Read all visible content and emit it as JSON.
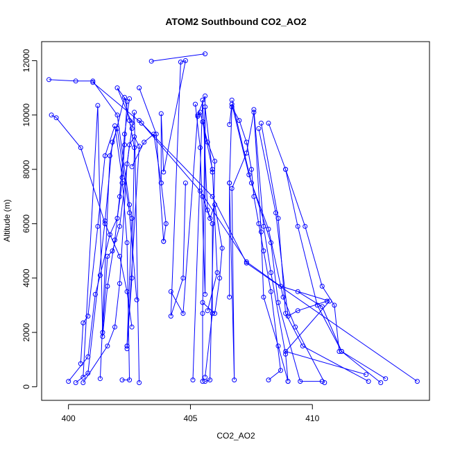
{
  "chart_data": {
    "type": "line",
    "title": "ATOM2 Southbound CO2_AO2",
    "xlabel": "CO2_AO2",
    "ylabel": "Altitude (m)",
    "xlim": [
      398.9,
      414.8
    ],
    "ylim": [
      -500,
      12700
    ],
    "xticks": [
      400,
      405,
      410
    ],
    "xtick_labels": [
      "400",
      "405",
      "410"
    ],
    "yticks": [
      0,
      2000,
      4000,
      6000,
      8000,
      10000,
      12000
    ],
    "ytick_labels": [
      "0",
      "2000",
      "4000",
      "6000",
      "8000",
      "10000",
      "12000"
    ],
    "colors": {
      "series": "#0000ff",
      "axis": "#000000",
      "background": "#ffffff"
    },
    "markers": "open-circle",
    "series": [
      {
        "points": [
          [
            400.0,
            200
          ],
          [
            400.8,
            1100
          ],
          [
            401.1,
            3400
          ],
          [
            401.3,
            4100
          ],
          [
            401.7,
            5600
          ],
          [
            402.0,
            6200
          ],
          [
            402.2,
            7500
          ],
          [
            402.3,
            8900
          ],
          [
            402.4,
            10500
          ],
          [
            402.0,
            11000
          ],
          [
            402.6,
            9700
          ]
        ]
      },
      {
        "points": [
          [
            400.3,
            150
          ],
          [
            400.8,
            500
          ],
          [
            401.5,
            6100
          ],
          [
            401.8,
            9000
          ],
          [
            402.0,
            9500
          ],
          [
            402.5,
            6400
          ],
          [
            402.8,
            3200
          ]
        ]
      },
      {
        "points": [
          [
            400.6,
            150
          ],
          [
            401.6,
            1500
          ],
          [
            401.9,
            2200
          ],
          [
            402.1,
            3800
          ],
          [
            402.4,
            8200
          ],
          [
            402.6,
            9500
          ],
          [
            402.7,
            10100
          ],
          [
            402.9,
            150
          ]
        ]
      },
      {
        "points": [
          [
            400.6,
            350
          ],
          [
            401.2,
            10350
          ],
          [
            401.4,
            2000
          ],
          [
            401.6,
            4800
          ],
          [
            401.8,
            5000
          ],
          [
            402.1,
            5900
          ],
          [
            402.5,
            8900
          ],
          [
            402.7,
            9200
          ],
          [
            402.9,
            8850
          ],
          [
            402.4,
            1400
          ]
        ]
      },
      {
        "points": [
          [
            401.3,
            300
          ],
          [
            401.7,
            8500
          ],
          [
            402.3,
            10650
          ],
          [
            402.5,
            9800
          ],
          [
            402.7,
            8800
          ],
          [
            402.6,
            4000
          ],
          [
            402.4,
            1500
          ]
        ]
      },
      {
        "points": [
          [
            400.5,
            850
          ],
          [
            400.6,
            2350
          ],
          [
            400.8,
            2600
          ],
          [
            401.2,
            5900
          ],
          [
            401.5,
            8500
          ],
          [
            401.9,
            9600
          ],
          [
            402.2,
            7700
          ],
          [
            402.4,
            5300
          ],
          [
            402.5,
            250
          ],
          [
            402.2,
            250
          ]
        ]
      },
      {
        "points": [
          [
            399.2,
            11300
          ],
          [
            400.3,
            11250
          ],
          [
            401.0,
            11250
          ],
          [
            402.0,
            10000
          ],
          [
            402.5,
            6700
          ],
          [
            402.6,
            6200
          ],
          [
            402.4,
            1500
          ]
        ]
      },
      {
        "points": [
          [
            399.3,
            10000
          ],
          [
            399.5,
            9900
          ],
          [
            400.5,
            8800
          ],
          [
            401.5,
            6000
          ],
          [
            402.1,
            4800
          ],
          [
            402.4,
            3500
          ],
          [
            402.6,
            2200
          ]
        ]
      },
      {
        "points": [
          [
            401.4,
            1850
          ],
          [
            401.6,
            3700
          ],
          [
            401.9,
            5400
          ],
          [
            402.1,
            7000
          ],
          [
            402.3,
            9300
          ],
          [
            402.5,
            10600
          ]
        ]
      },
      {
        "points": [
          [
            403.4,
            11980
          ],
          [
            405.6,
            12250
          ]
        ]
      },
      {
        "points": [
          [
            402.6,
            8100
          ],
          [
            403.1,
            9000
          ],
          [
            403.5,
            9300
          ],
          [
            403.8,
            7500
          ],
          [
            403.8,
            10050
          ],
          [
            403.9,
            7900
          ],
          [
            404.8,
            12000
          ],
          [
            404.6,
            11950
          ],
          [
            404.2,
            2600
          ],
          [
            404.7,
            4000
          ],
          [
            404.8,
            7500
          ]
        ]
      },
      {
        "points": [
          [
            403.9,
            5350
          ],
          [
            404.0,
            6000
          ],
          [
            403.8,
            7500
          ]
        ]
      },
      {
        "points": [
          [
            403.9,
            5350
          ],
          [
            403.6,
            9300
          ],
          [
            402.9,
            11000
          ]
        ]
      },
      {
        "points": [
          [
            404.2,
            3500
          ],
          [
            404.7,
            2700
          ],
          [
            405.3,
            10000
          ],
          [
            405.6,
            10700
          ],
          [
            405.5,
            2700
          ],
          [
            405.5,
            200
          ]
        ]
      },
      {
        "points": [
          [
            405.1,
            250
          ],
          [
            405.5,
            10550
          ],
          [
            405.7,
            6500
          ],
          [
            405.9,
            6000
          ],
          [
            405.9,
            2700
          ],
          [
            405.6,
            350
          ]
        ]
      },
      {
        "points": [
          [
            405.2,
            10400
          ],
          [
            405.4,
            8800
          ],
          [
            405.6,
            3400
          ],
          [
            405.6,
            10300
          ],
          [
            405.9,
            7900
          ]
        ]
      },
      {
        "points": [
          [
            405.3,
            9950
          ],
          [
            405.4,
            10100
          ],
          [
            405.7,
            9000
          ],
          [
            406.0,
            8300
          ],
          [
            405.8,
            250
          ],
          [
            405.6,
            200
          ]
        ]
      },
      {
        "points": [
          [
            405.5,
            7000
          ],
          [
            405.8,
            6200
          ],
          [
            406.0,
            6700
          ],
          [
            406.3,
            5100
          ],
          [
            406.2,
            4000
          ],
          [
            406.0,
            2700
          ],
          [
            405.5,
            3100
          ]
        ]
      },
      {
        "points": [
          [
            405.5,
            9750
          ],
          [
            405.9,
            8000
          ],
          [
            406.1,
            4200
          ],
          [
            405.7,
            2800
          ]
        ]
      },
      {
        "points": [
          [
            406.6,
            3300
          ],
          [
            406.6,
            7500
          ],
          [
            406.8,
            250
          ],
          [
            406.7,
            7300
          ],
          [
            407.3,
            8600
          ],
          [
            407.6,
            10100
          ],
          [
            407.9,
            5700
          ],
          [
            408.0,
            3300
          ],
          [
            408.6,
            1500
          ],
          [
            409.0,
            200
          ]
        ]
      },
      {
        "points": [
          [
            406.6,
            9650
          ],
          [
            406.7,
            10400
          ],
          [
            407.4,
            7800
          ],
          [
            408.3,
            5300
          ],
          [
            408.6,
            3100
          ],
          [
            409.5,
            200
          ],
          [
            410.4,
            200
          ]
        ]
      },
      {
        "points": [
          [
            406.7,
            10550
          ],
          [
            407.5,
            7500
          ],
          [
            408.2,
            5800
          ],
          [
            408.8,
            3300
          ],
          [
            409.3,
            2200
          ],
          [
            410.5,
            150
          ]
        ]
      },
      {
        "points": [
          [
            407.6,
            10200
          ],
          [
            408.0,
            5900
          ],
          [
            408.3,
            4200
          ],
          [
            408.9,
            1200
          ],
          [
            409.0,
            200
          ]
        ]
      },
      {
        "points": [
          [
            407.9,
            9700
          ],
          [
            408.6,
            6200
          ],
          [
            408.9,
            2700
          ],
          [
            409.6,
            1500
          ],
          [
            412.3,
            200
          ]
        ]
      },
      {
        "points": [
          [
            408.2,
            9700
          ],
          [
            408.9,
            8000
          ],
          [
            409.4,
            5900
          ],
          [
            410.2,
            3000
          ],
          [
            411.2,
            1300
          ],
          [
            412.8,
            150
          ]
        ]
      },
      {
        "points": [
          [
            407.8,
            9500
          ],
          [
            408.5,
            6400
          ],
          [
            409.0,
            2600
          ],
          [
            409.4,
            2800
          ],
          [
            410.6,
            3150
          ]
        ]
      },
      {
        "points": [
          [
            402.9,
            9800
          ],
          [
            405.4,
            7200
          ],
          [
            407.3,
            4600
          ],
          [
            408.7,
            3700
          ],
          [
            410.7,
            3150
          ],
          [
            408.9,
            1300
          ],
          [
            412.2,
            450
          ]
        ]
      },
      {
        "points": [
          [
            401.0,
            11200
          ],
          [
            403.0,
            9700
          ],
          [
            405.9,
            7000
          ],
          [
            407.3,
            4550
          ],
          [
            414.3,
            200
          ]
        ]
      },
      {
        "points": [
          [
            408.9,
            8000
          ],
          [
            409.7,
            5900
          ],
          [
            410.4,
            3700
          ],
          [
            410.9,
            3000
          ],
          [
            411.1,
            1300
          ]
        ]
      },
      {
        "points": [
          [
            406.6,
            7500
          ],
          [
            406.7,
            10300
          ],
          [
            407.0,
            9800
          ],
          [
            407.3,
            9000
          ],
          [
            407.5,
            8000
          ],
          [
            407.6,
            7000
          ],
          [
            407.8,
            6000
          ],
          [
            408.0,
            5000
          ],
          [
            408.3,
            3500
          ],
          [
            408.7,
            600
          ],
          [
            408.2,
            250
          ]
        ]
      },
      {
        "points": [
          [
            409.4,
            3500
          ],
          [
            410.4,
            2950
          ],
          [
            411.2,
            1300
          ],
          [
            413.0,
            300
          ]
        ]
      }
    ]
  }
}
